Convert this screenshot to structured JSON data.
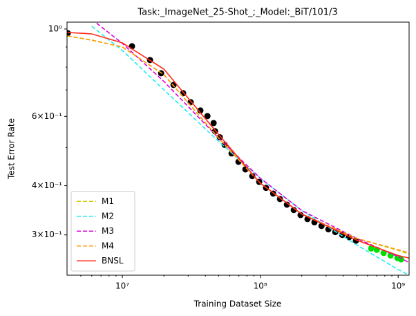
{
  "chart_data": {
    "type": "line",
    "title": "Task:_ImageNet_25-Shot_;_Model:_BiT/101/3",
    "xlabel": "Training Dataset Size",
    "ylabel": "Test Error Rate",
    "xscale": "log",
    "yscale": "log",
    "xlim": [
      3970000,
      1200000000
    ],
    "ylim": [
      0.237,
      1.041
    ],
    "xticks": [
      {
        "value": 10000000,
        "label": "10⁷"
      },
      {
        "value": 100000000,
        "label": "10⁸"
      },
      {
        "value": 1000000000,
        "label": "10⁹"
      }
    ],
    "xminorticks": [
      5000000,
      6000000,
      7000000,
      8000000,
      9000000,
      20000000,
      30000000,
      40000000,
      50000000,
      60000000,
      70000000,
      80000000,
      90000000,
      200000000,
      300000000,
      400000000,
      500000000,
      600000000,
      700000000,
      800000000,
      900000000
    ],
    "yticks": [
      {
        "value": 1,
        "label": "10⁰"
      },
      {
        "value": 0.6,
        "label": "6×10⁻¹"
      },
      {
        "value": 0.4,
        "label": "4×10⁻¹"
      },
      {
        "value": 0.3,
        "label": "3×10⁻¹"
      }
    ],
    "yminorticks": [
      0.5,
      0.7,
      0.8,
      0.9
    ],
    "legend": "lower left",
    "x": [
      4000000,
      6000000,
      10000000,
      20000000,
      50000000,
      100000000,
      200000000,
      500000000,
      1000000000,
      1200000000
    ],
    "series": [
      {
        "name": "M1",
        "color": "#cccc00",
        "dash": true,
        "values": [
          0.96,
          0.937,
          0.9,
          0.766,
          0.528,
          0.406,
          0.339,
          0.294,
          0.274,
          0.268
        ]
      },
      {
        "name": "M2",
        "color": "#22eeee",
        "dash": true,
        "values": [
          null,
          1.016,
          0.882,
          0.701,
          0.518,
          0.418,
          0.346,
          0.283,
          0.245,
          0.237
        ]
      },
      {
        "name": "M3",
        "color": "#dd00dd",
        "dash": true,
        "values": [
          null,
          1.058,
          0.919,
          0.736,
          0.528,
          0.418,
          0.346,
          0.294,
          0.264,
          0.255
        ]
      },
      {
        "name": "M4",
        "color": "#ff9900",
        "dash": true,
        "values": [
          0.96,
          0.937,
          0.9,
          0.766,
          0.528,
          0.406,
          0.339,
          0.294,
          0.275,
          0.27
        ]
      },
      {
        "name": "BNSL",
        "color": "#ff2a1a",
        "dash": false,
        "values": [
          0.98,
          0.972,
          0.922,
          0.791,
          0.539,
          0.406,
          0.339,
          0.291,
          0.266,
          0.262
        ]
      }
    ],
    "points": [
      {
        "color": "#000000",
        "x": [
          4020000,
          11750000,
          15870000,
          19090000,
          23500000,
          27600000,
          31300000,
          36800000,
          41400000,
          45900000,
          47000000,
          50900000,
          55200000,
          61900000,
          69500000,
          78000000,
          87500000,
          98200000,
          110000000,
          124000000,
          139000000,
          156000000,
          175000000,
          196000000,
          220000000,
          247000000,
          278000000,
          312000000,
          350000000,
          393000000,
          440000000,
          494000000
        ],
        "values": [
          0.976,
          0.904,
          0.834,
          0.772,
          0.721,
          0.687,
          0.652,
          0.621,
          0.601,
          0.577,
          0.55,
          0.531,
          0.508,
          0.483,
          0.46,
          0.44,
          0.423,
          0.409,
          0.395,
          0.382,
          0.37,
          0.358,
          0.347,
          0.337,
          0.329,
          0.323,
          0.316,
          0.31,
          0.305,
          0.3,
          0.296,
          0.29
        ]
      },
      {
        "color": "#00e000",
        "x": [
          637000000,
          700000000,
          785000000,
          881000000,
          989000000,
          1050000000
        ],
        "values": [
          0.277,
          0.275,
          0.27,
          0.266,
          0.262,
          0.26
        ]
      }
    ]
  }
}
